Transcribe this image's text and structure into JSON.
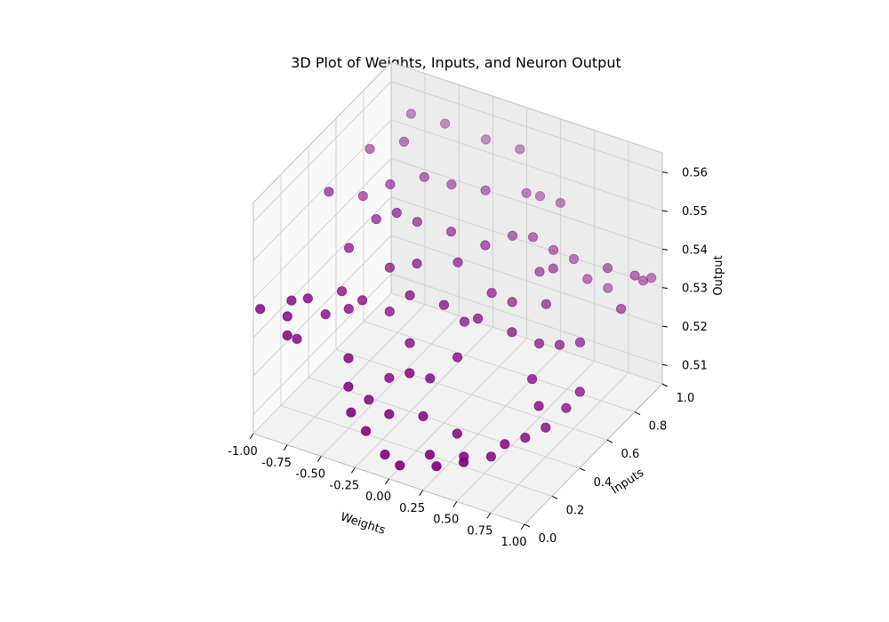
{
  "chart_data": {
    "type": "scatter",
    "projection": "3d",
    "title": "3D Plot of Weights, Inputs, and Neuron Output",
    "xlabel": "Weights",
    "ylabel": "Inputs",
    "zlabel": "Output",
    "xlim": [
      -1.0,
      1.0
    ],
    "ylim": [
      0.0,
      1.0
    ],
    "zlim": [
      0.505,
      0.565
    ],
    "xticks": [
      "-1.00",
      "-0.75",
      "-0.50",
      "-0.25",
      "0.00",
      "0.25",
      "0.50",
      "0.75",
      "1.00"
    ],
    "yticks": [
      "0.0",
      "0.2",
      "0.4",
      "0.6",
      "0.8",
      "1.0"
    ],
    "zticks": [
      "0.51",
      "0.52",
      "0.53",
      "0.54",
      "0.55",
      "0.56"
    ],
    "grid": true,
    "marker_color": "#800080",
    "series": [
      {
        "points": [
          [
            -0.97,
            0.02,
            0.537
          ],
          [
            -0.8,
            0.05,
            0.536
          ],
          [
            -0.75,
            0.07,
            0.53
          ],
          [
            -0.8,
            0.08,
            0.539
          ],
          [
            -0.78,
            0.03,
            0.532
          ],
          [
            -0.7,
            0.1,
            0.54
          ],
          [
            -0.62,
            0.15,
            0.535
          ],
          [
            -0.55,
            0.2,
            0.54
          ],
          [
            -0.45,
            0.25,
            0.537
          ],
          [
            -0.35,
            0.05,
            0.523
          ],
          [
            -0.3,
            0.02,
            0.518
          ],
          [
            -0.25,
            0.1,
            0.519
          ],
          [
            -0.2,
            0.03,
            0.514
          ],
          [
            -0.1,
            0.1,
            0.517
          ],
          [
            -0.05,
            0.02,
            0.51
          ],
          [
            0.05,
            0.03,
            0.508
          ],
          [
            0.1,
            0.15,
            0.517
          ],
          [
            0.2,
            0.1,
            0.51
          ],
          [
            0.3,
            0.2,
            0.513
          ],
          [
            0.4,
            0.15,
            0.51
          ],
          [
            0.55,
            0.2,
            0.51
          ],
          [
            0.6,
            0.25,
            0.512
          ],
          [
            0.7,
            0.3,
            0.513
          ],
          [
            0.8,
            0.35,
            0.515
          ],
          [
            0.85,
            0.45,
            0.517
          ],
          [
            0.9,
            0.5,
            0.52
          ],
          [
            0.95,
            0.85,
            0.538
          ],
          [
            0.96,
            0.9,
            0.535
          ],
          [
            0.97,
            0.95,
            0.534
          ],
          [
            0.95,
            0.75,
            0.533
          ],
          [
            -0.6,
            0.3,
            0.547
          ],
          [
            -0.5,
            0.4,
            0.552
          ],
          [
            -0.4,
            0.45,
            0.553
          ],
          [
            -0.3,
            0.5,
            0.55
          ],
          [
            -0.2,
            0.4,
            0.544
          ],
          [
            -0.1,
            0.55,
            0.548
          ],
          [
            0.0,
            0.5,
            0.543
          ],
          [
            0.1,
            0.6,
            0.545
          ],
          [
            0.2,
            0.7,
            0.545
          ],
          [
            0.3,
            0.75,
            0.544
          ],
          [
            0.4,
            0.8,
            0.54
          ],
          [
            0.5,
            0.85,
            0.537
          ],
          [
            0.6,
            0.85,
            0.533
          ],
          [
            0.7,
            0.9,
            0.53
          ],
          [
            -0.35,
            0.35,
            0.543
          ],
          [
            -0.15,
            0.3,
            0.54
          ],
          [
            0.05,
            0.35,
            0.538
          ],
          [
            0.25,
            0.4,
            0.535
          ],
          [
            0.45,
            0.45,
            0.532
          ],
          [
            0.6,
            0.5,
            0.529
          ],
          [
            0.7,
            0.55,
            0.528
          ],
          [
            0.8,
            0.6,
            0.528
          ],
          [
            -0.55,
            0.55,
            0.555
          ],
          [
            -0.4,
            0.65,
            0.555
          ],
          [
            -0.25,
            0.7,
            0.553
          ],
          [
            -0.05,
            0.75,
            0.552
          ],
          [
            0.15,
            0.85,
            0.55
          ],
          [
            0.35,
            0.9,
            0.548
          ],
          [
            -0.7,
            0.5,
            0.552
          ],
          [
            -0.65,
            0.8,
            0.563
          ],
          [
            -0.45,
            0.85,
            0.561
          ],
          [
            -0.2,
            0.9,
            0.558
          ],
          [
            0.0,
            0.95,
            0.556
          ],
          [
            0.2,
            0.9,
            0.548
          ],
          [
            0.4,
            0.7,
            0.538
          ],
          [
            0.55,
            0.6,
            0.535
          ],
          [
            0.1,
            0.2,
            0.525
          ],
          [
            -0.1,
            0.25,
            0.53
          ],
          [
            -0.3,
            0.3,
            0.534
          ],
          [
            -0.5,
            0.2,
            0.536
          ],
          [
            0.0,
            0.15,
            0.527
          ],
          [
            0.2,
            0.3,
            0.528
          ],
          [
            0.35,
            0.55,
            0.535
          ],
          [
            0.5,
            0.7,
            0.54
          ],
          [
            -0.85,
            0.4,
            0.555
          ],
          [
            -0.75,
            0.6,
            0.56
          ],
          [
            -0.6,
            0.7,
            0.56
          ],
          [
            0.25,
            0.5,
            0.538
          ],
          [
            0.65,
            0.4,
            0.524
          ],
          [
            0.75,
            0.35,
            0.52
          ],
          [
            -0.15,
            0.15,
            0.524
          ],
          [
            0.3,
            0.05,
            0.51
          ],
          [
            0.45,
            0.1,
            0.511
          ],
          [
            -0.4,
            0.1,
            0.528
          ],
          [
            0.8,
            0.8,
            0.54
          ],
          [
            0.15,
            0.4,
            0.533
          ]
        ]
      }
    ]
  }
}
